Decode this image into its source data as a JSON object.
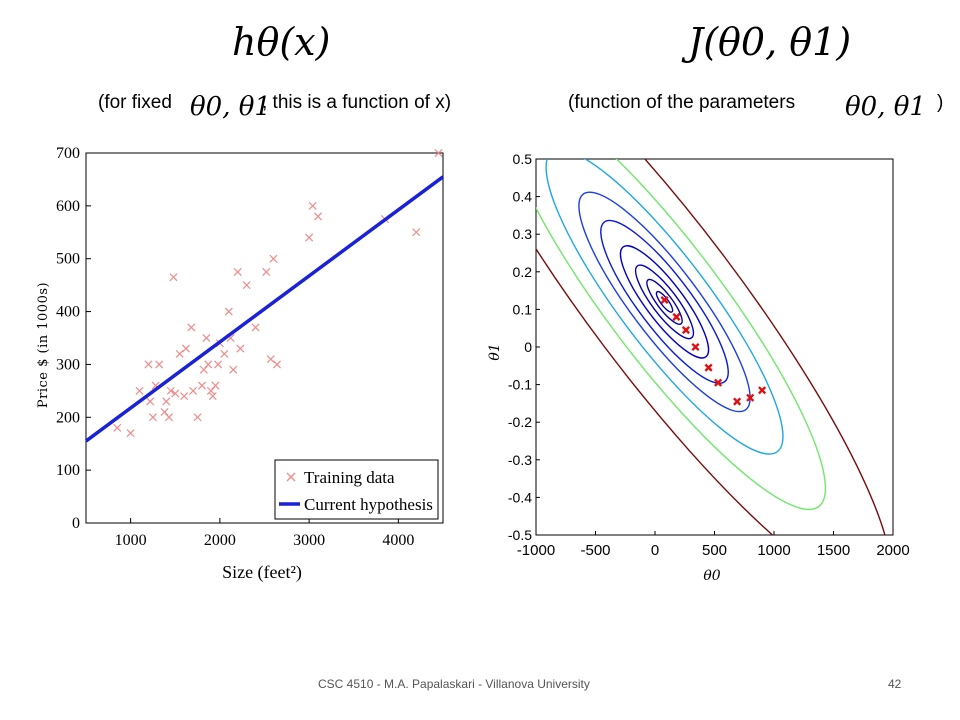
{
  "slide": {
    "left_formula": "hθ(x)",
    "right_formula": "J(θ0, θ1)",
    "left_caption": {
      "pre": "(for fixed",
      "params": "θ0, θ1",
      "post": ", this is a function of x)"
    },
    "right_caption": {
      "pre": "(function of the parameters",
      "params": "θ0, θ1",
      "post": ")"
    },
    "footer": "CSC 4510 - M.A. Papalaskari - Villanova University",
    "page_number": "42"
  },
  "chart_data": [
    {
      "type": "scatter",
      "xlabel": "Size (feet²)",
      "ylabel": "Price $ (in 1000s)",
      "xlim": [
        500,
        4500
      ],
      "ylim": [
        0,
        700
      ],
      "xticks": [
        1000,
        2000,
        3000,
        4000
      ],
      "yticks": [
        0,
        100,
        200,
        300,
        400,
        500,
        600,
        700
      ],
      "legend": {
        "placement": "bottom-right",
        "entries": [
          "Training data",
          "Current hypothesis"
        ]
      },
      "colors": {
        "points": "#f08a8a",
        "line": "#1a22d8"
      },
      "series": [
        {
          "name": "Training data",
          "marker": "x",
          "points": [
            [
              850,
              180
            ],
            [
              1000,
              170
            ],
            [
              1100,
              250
            ],
            [
              1200,
              300
            ],
            [
              1220,
              230
            ],
            [
              1250,
              200
            ],
            [
              1280,
              260
            ],
            [
              1320,
              300
            ],
            [
              1380,
              210
            ],
            [
              1400,
              230
            ],
            [
              1430,
              200
            ],
            [
              1450,
              250
            ],
            [
              1480,
              465
            ],
            [
              1500,
              245
            ],
            [
              1550,
              320
            ],
            [
              1600,
              240
            ],
            [
              1620,
              330
            ],
            [
              1680,
              370
            ],
            [
              1700,
              250
            ],
            [
              1750,
              200
            ],
            [
              1800,
              260
            ],
            [
              1820,
              290
            ],
            [
              1850,
              350
            ],
            [
              1870,
              300
            ],
            [
              1900,
              250
            ],
            [
              1920,
              240
            ],
            [
              1950,
              260
            ],
            [
              1980,
              300
            ],
            [
              2000,
              340
            ],
            [
              2050,
              320
            ],
            [
              2100,
              400
            ],
            [
              2120,
              350
            ],
            [
              2150,
              290
            ],
            [
              2200,
              475
            ],
            [
              2230,
              330
            ],
            [
              2300,
              450
            ],
            [
              2400,
              370
            ],
            [
              2520,
              475
            ],
            [
              2570,
              310
            ],
            [
              2600,
              500
            ],
            [
              2640,
              300
            ],
            [
              3000,
              540
            ],
            [
              3040,
              600
            ],
            [
              3100,
              580
            ],
            [
              3850,
              575
            ],
            [
              4200,
              550
            ],
            [
              4450,
              700
            ]
          ]
        },
        {
          "name": "Current hypothesis",
          "type": "line",
          "points": [
            [
              500,
              155
            ],
            [
              4500,
              655
            ]
          ]
        }
      ]
    },
    {
      "type": "contour",
      "xlabel": "θ0",
      "ylabel": "θ1",
      "xlim": [
        -1000,
        2000
      ],
      "ylim": [
        -0.5,
        0.5
      ],
      "xticks": [
        -1000,
        -500,
        0,
        500,
        1000,
        1500,
        2000
      ],
      "yticks": [
        -0.5,
        -0.4,
        -0.3,
        -0.2,
        -0.1,
        0,
        0.1,
        0.2,
        0.3,
        0.4,
        0.5
      ],
      "center": [
        80,
        0.12
      ],
      "contour_colors": [
        "#0000a8",
        "#0000a8",
        "#0000b8",
        "#0000c8",
        "#0a1ad8",
        "#1a3ee8",
        "#1da7e6",
        "#6ee86a",
        "#7a0a0a"
      ],
      "descent_path": {
        "color": "#e01010",
        "marker": "x",
        "points": [
          [
            80,
            0.125
          ],
          [
            180,
            0.08
          ],
          [
            260,
            0.045
          ],
          [
            340,
            0.0
          ],
          [
            450,
            -0.055
          ],
          [
            530,
            -0.095
          ],
          [
            690,
            -0.145
          ],
          [
            800,
            -0.135
          ],
          [
            900,
            -0.115
          ]
        ]
      }
    }
  ]
}
